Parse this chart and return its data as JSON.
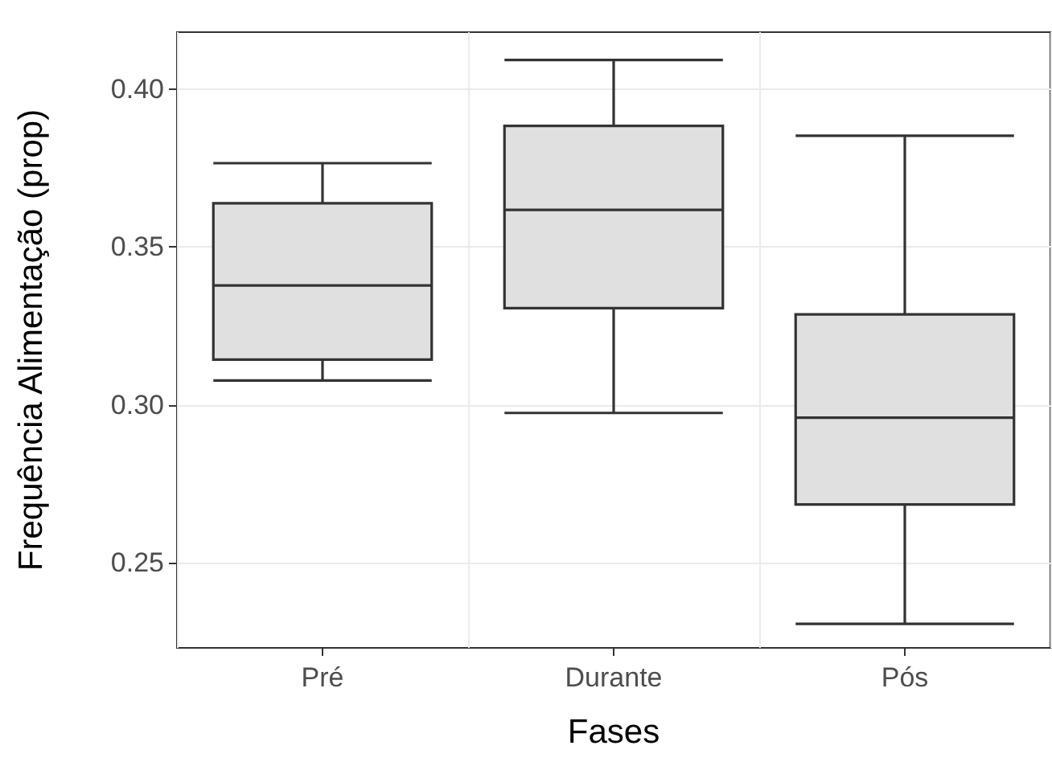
{
  "chart_data": {
    "type": "box",
    "xlabel": "Fases",
    "ylabel": "Frequência Alimentação (prop)",
    "categories": [
      "Pré",
      "Durante",
      "Pós"
    ],
    "boxes": [
      {
        "low": 0.3077,
        "q1": 0.3143,
        "median": 0.3378,
        "q3": 0.3638,
        "high": 0.3765
      },
      {
        "low": 0.2974,
        "q1": 0.3306,
        "median": 0.3617,
        "q3": 0.3883,
        "high": 0.4092
      },
      {
        "low": 0.2306,
        "q1": 0.2684,
        "median": 0.2959,
        "q3": 0.3286,
        "high": 0.3852
      }
    ],
    "color": "#e0e0e0",
    "ylim": [
      0.223,
      0.418
    ],
    "yticks": [
      {
        "value": 0.25,
        "label": "0.25"
      },
      {
        "value": 0.3,
        "label": "0.30"
      },
      {
        "value": 0.35,
        "label": "0.35"
      },
      {
        "value": 0.4,
        "label": "0.40"
      }
    ],
    "grid": true
  }
}
